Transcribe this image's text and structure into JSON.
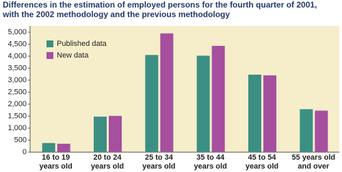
{
  "chart_data": {
    "type": "bar",
    "title": [
      "Differences in the estimation of employed persons for the fourth quarter of 2001,",
      "with the 2002 methodology and the previous methodology"
    ],
    "categories": [
      [
        "16 to 19",
        "years old"
      ],
      [
        "20 to 24",
        "years old"
      ],
      [
        "25 to 34",
        "years old"
      ],
      [
        "35 to 44",
        "years old"
      ],
      [
        "45 to 54",
        "years old"
      ],
      [
        "55 years old",
        "and over"
      ]
    ],
    "series": [
      {
        "name": "Published data",
        "color": "#3b8f83",
        "values": [
          380,
          1480,
          4050,
          4020,
          3230,
          1790
        ]
      },
      {
        "name": "New data",
        "color": "#a64f9f",
        "values": [
          350,
          1510,
          4950,
          4430,
          3200,
          1730
        ]
      }
    ],
    "ylim": [
      0,
      5000
    ],
    "yticks": [
      0,
      500,
      {
        "value": 1000,
        "label": "1,000"
      },
      {
        "value": 1500,
        "label": "1,500"
      },
      {
        "value": 2000,
        "label": "2,000"
      },
      {
        "value": 2500,
        "label": "2,500"
      },
      {
        "value": 3000,
        "label": "3,000"
      },
      {
        "value": 3500,
        "label": "3,500"
      },
      {
        "value": 4000,
        "label": "4,000"
      },
      {
        "value": 4500,
        "label": "4,500"
      },
      {
        "value": 5000,
        "label": "5,000"
      }
    ],
    "grid": false,
    "legend": "upper left"
  }
}
